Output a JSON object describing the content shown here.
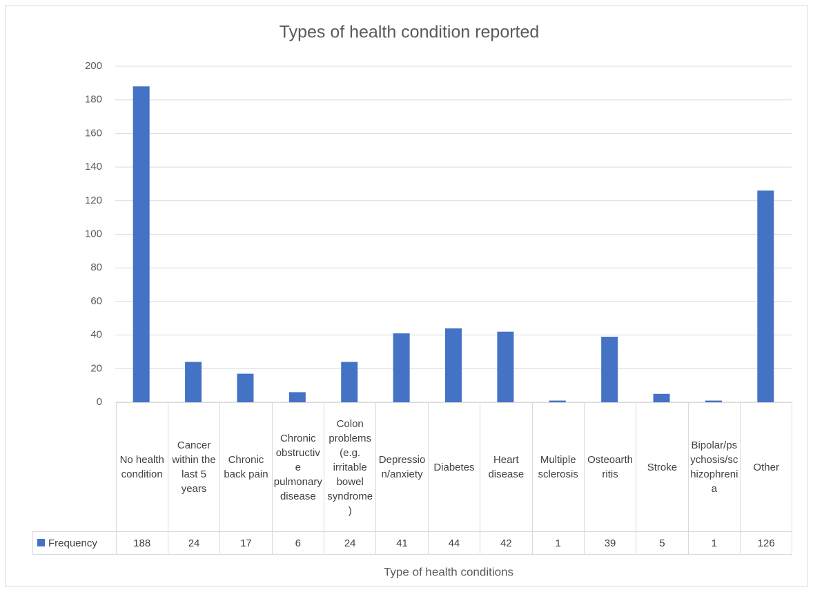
{
  "chart_data": {
    "type": "bar",
    "title": "Types of health condition reported",
    "x_label": "Type of health conditions",
    "categories": [
      "No health condition",
      "Cancer within the last 5 years",
      "Chronic back pain",
      "Chronic obstructive pulmonary disease",
      "Colon problems (e.g. irritable bowel syndrome)",
      "Depression/anxiety",
      "Diabetes",
      "Heart disease",
      "Multiple sclerosis",
      "Osteoarthritis",
      "Stroke",
      "Bipolar/psychosis/schizophrenia",
      "Other"
    ],
    "series": [
      {
        "name": "Frequency",
        "color": "#4472c4",
        "values": [
          188,
          24,
          17,
          6,
          24,
          41,
          44,
          42,
          1,
          39,
          5,
          1,
          126
        ]
      }
    ],
    "ylim": [
      0,
      200
    ],
    "yticks": [
      0,
      20,
      40,
      60,
      80,
      100,
      120,
      140,
      160,
      180,
      200
    ],
    "grid": true
  }
}
